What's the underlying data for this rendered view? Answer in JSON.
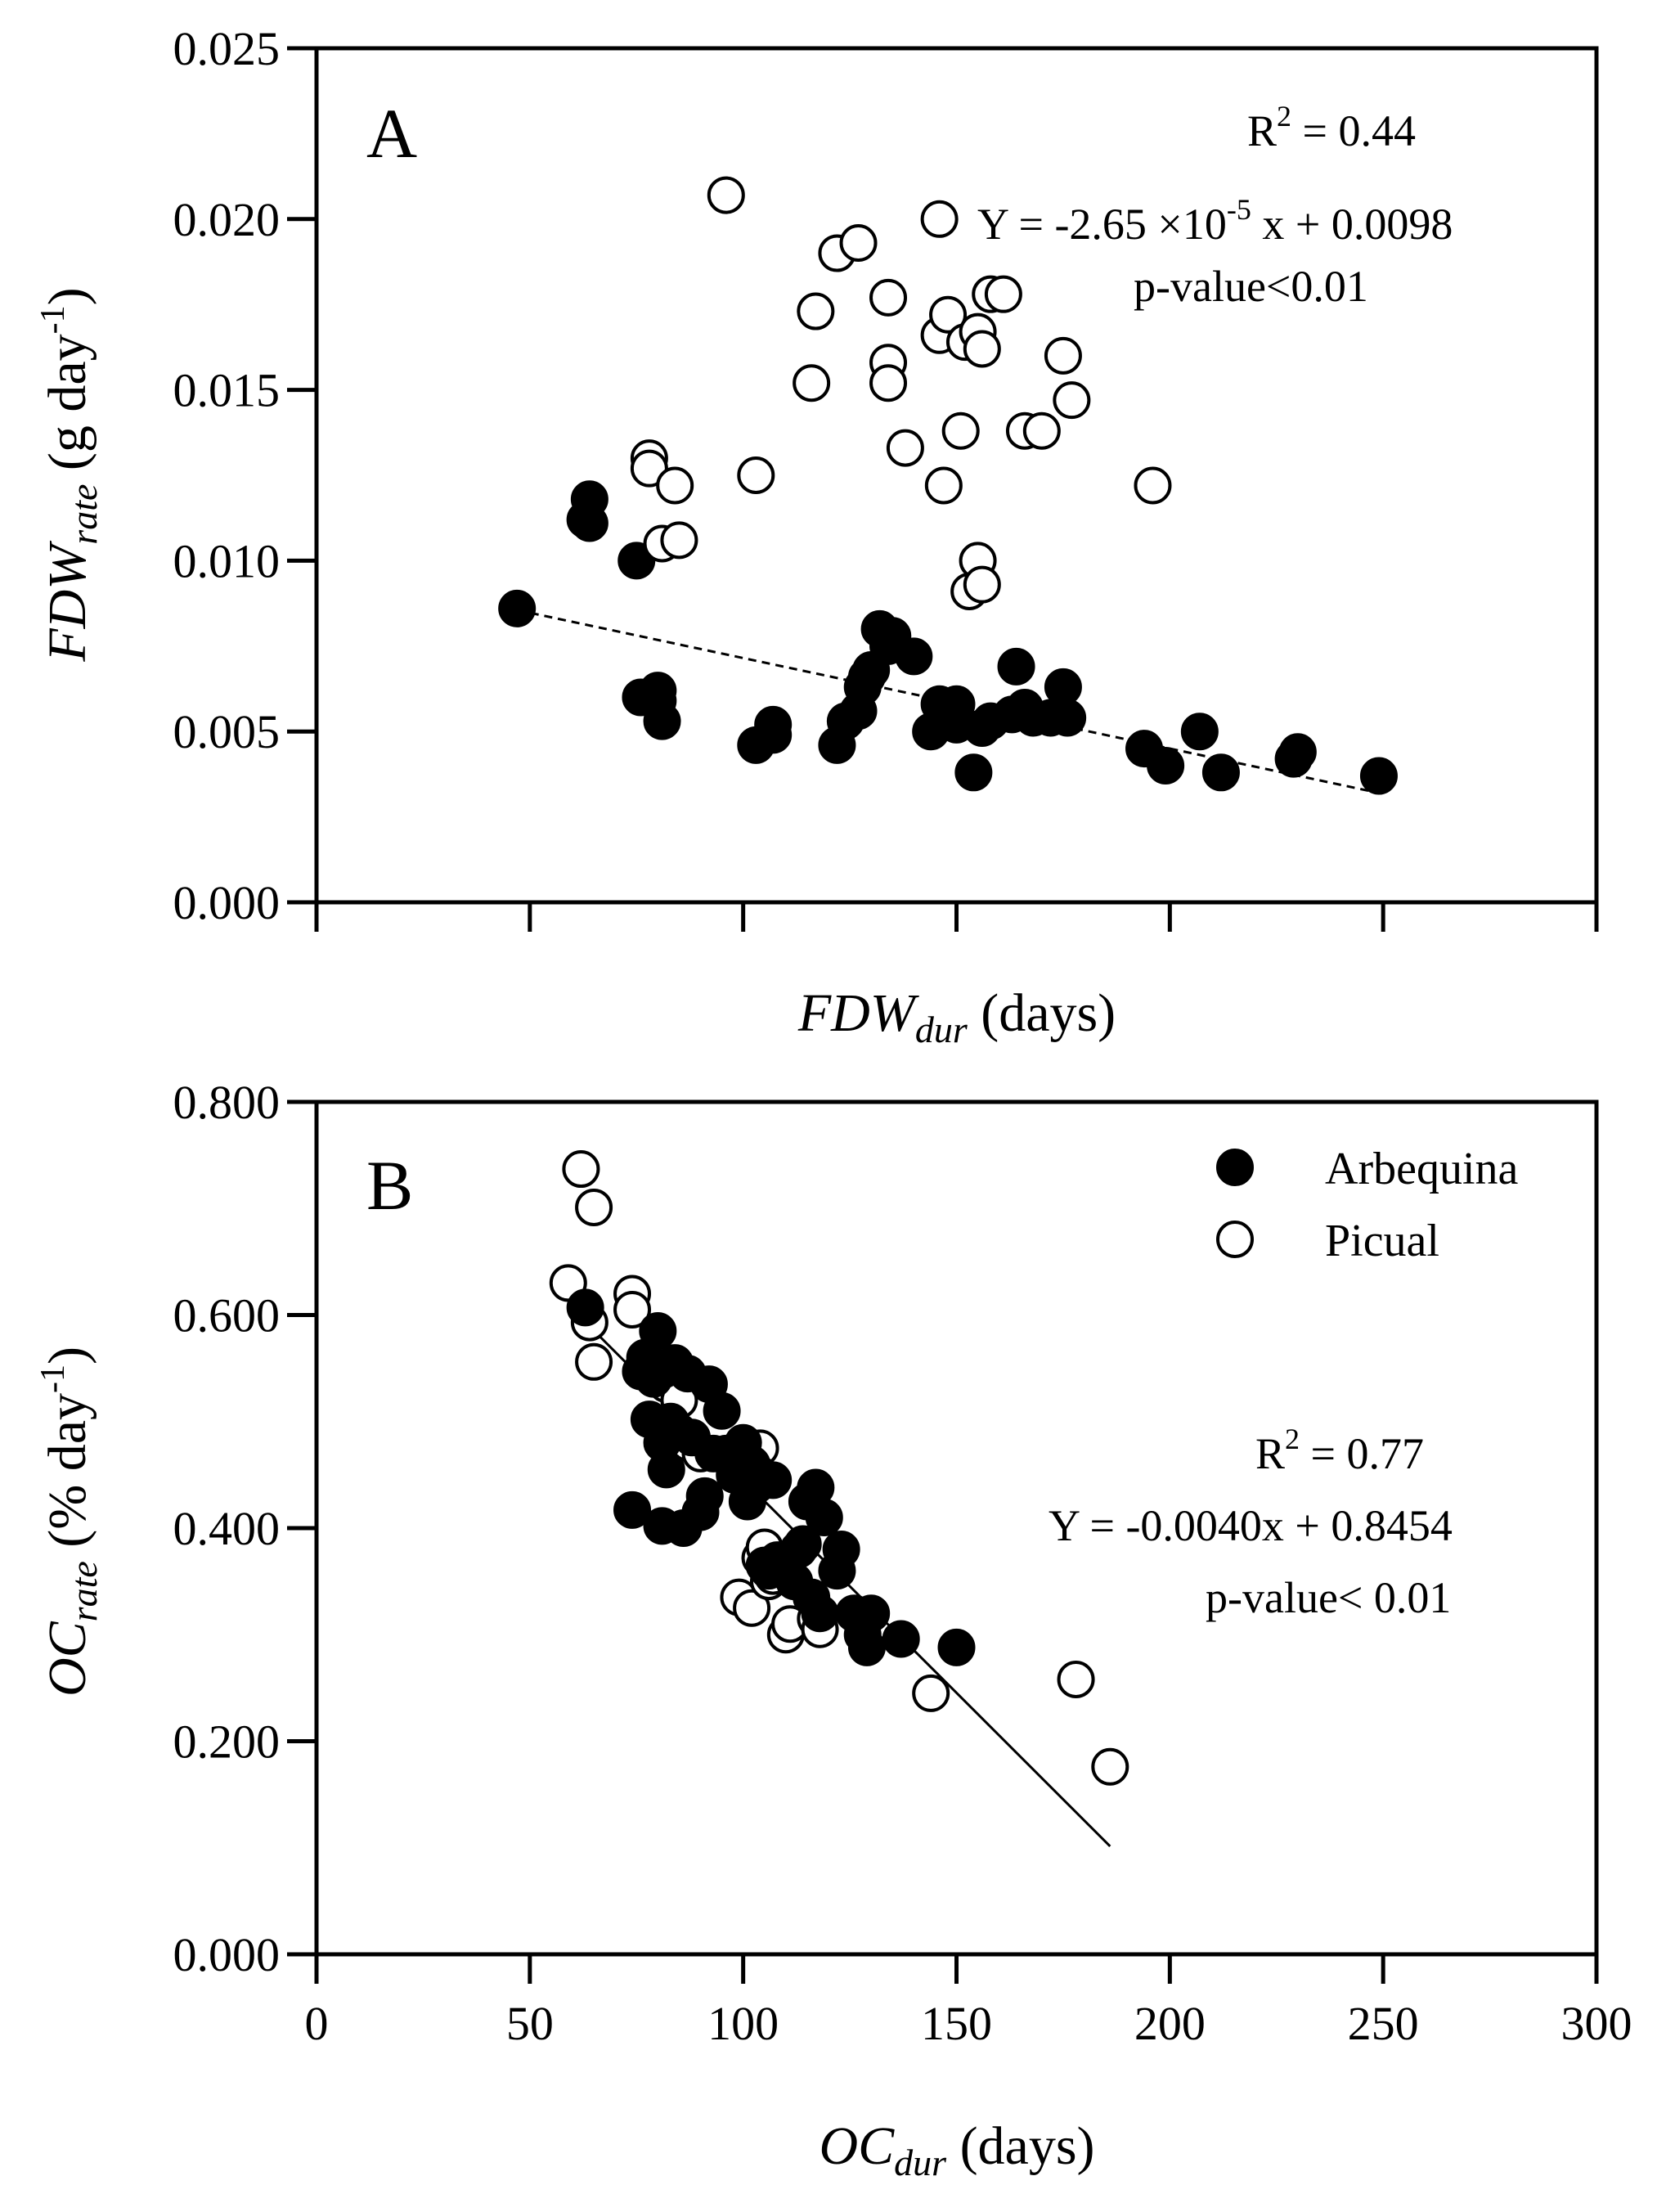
{
  "chart_data": [
    {
      "panel": "A",
      "type": "scatter",
      "panel_label": "A",
      "xlabel_main": "FDW",
      "xlabel_sub": "dur",
      "xlabel_units": " (days)",
      "ylabel_main": "FDW",
      "ylabel_sub": "rate",
      "ylabel_units": " (g day",
      "ylabel_sup": "-1",
      "ylabel_close": ")",
      "xlim": [
        0,
        300
      ],
      "ylim": [
        0,
        0.025
      ],
      "xticks": [
        0,
        50,
        100,
        150,
        200,
        250,
        300
      ],
      "yticks": [
        0.0,
        0.005,
        0.01,
        0.015,
        0.02,
        0.025
      ],
      "ytick_labels": [
        "0.000",
        "0.005",
        "0.010",
        "0.015",
        "0.020",
        "0.025"
      ],
      "annotations": {
        "r2_prefix": "R",
        "r2_sup": "2",
        "r2_value": " = 0.44",
        "eq_prefix": "Y = -2.65 ×10",
        "eq_sup": "-5",
        "eq_suffix": " x + 0.0098",
        "pvalue": "p-value<0.01"
      },
      "fit": {
        "style": "dashed",
        "slope": -2.65e-05,
        "intercept": 0.0098,
        "x_range": [
          47,
          250
        ],
        "applies_to": "Arbequina"
      },
      "series": [
        {
          "name": "Arbequina",
          "marker": "filled",
          "points": [
            [
              47,
              0.0086
            ],
            [
              63,
              0.0112
            ],
            [
              64,
              0.0118
            ],
            [
              64,
              0.0111
            ],
            [
              75,
              0.01
            ],
            [
              76,
              0.006
            ],
            [
              80,
              0.0062
            ],
            [
              80,
              0.0059
            ],
            [
              81,
              0.0053
            ],
            [
              103,
              0.0046
            ],
            [
              107,
              0.0049
            ],
            [
              107,
              0.0052
            ],
            [
              122,
              0.0046
            ],
            [
              124,
              0.0053
            ],
            [
              127,
              0.0056
            ],
            [
              128,
              0.0063
            ],
            [
              129,
              0.0066
            ],
            [
              130,
              0.0068
            ],
            [
              132,
              0.008
            ],
            [
              134,
              0.0075
            ],
            [
              135,
              0.0078
            ],
            [
              140,
              0.0072
            ],
            [
              144,
              0.005
            ],
            [
              146,
              0.0058
            ],
            [
              148,
              0.0053
            ],
            [
              150,
              0.0058
            ],
            [
              150,
              0.0052
            ],
            [
              154,
              0.0038
            ],
            [
              156,
              0.0051
            ],
            [
              158,
              0.0053
            ],
            [
              163,
              0.0055
            ],
            [
              164,
              0.0069
            ],
            [
              166,
              0.0057
            ],
            [
              168,
              0.0054
            ],
            [
              172,
              0.0054
            ],
            [
              175,
              0.0063
            ],
            [
              176,
              0.0054
            ],
            [
              194,
              0.0045
            ],
            [
              199,
              0.004
            ],
            [
              207,
              0.005
            ],
            [
              212,
              0.0038
            ],
            [
              229,
              0.0042
            ],
            [
              230,
              0.0044
            ],
            [
              249,
              0.0037
            ]
          ]
        },
        {
          "name": "Picual",
          "marker": "open",
          "points": [
            [
              78,
              0.013
            ],
            [
              78,
              0.0127
            ],
            [
              81,
              0.0105
            ],
            [
              84,
              0.0122
            ],
            [
              85,
              0.0106
            ],
            [
              96,
              0.0207
            ],
            [
              103,
              0.0125
            ],
            [
              116,
              0.0152
            ],
            [
              117,
              0.0173
            ],
            [
              122,
              0.019
            ],
            [
              127,
              0.0193
            ],
            [
              134,
              0.0177
            ],
            [
              134,
              0.0158
            ],
            [
              134,
              0.0152
            ],
            [
              138,
              0.0133
            ],
            [
              146,
              0.02
            ],
            [
              146,
              0.0166
            ],
            [
              147,
              0.0122
            ],
            [
              148,
              0.0172
            ],
            [
              151,
              0.0138
            ],
            [
              152,
              0.0164
            ],
            [
              153,
              0.0091
            ],
            [
              155,
              0.0167
            ],
            [
              155,
              0.01
            ],
            [
              156,
              0.0162
            ],
            [
              156,
              0.0093
            ],
            [
              158,
              0.0178
            ],
            [
              161,
              0.0178
            ],
            [
              166,
              0.0138
            ],
            [
              170,
              0.0138
            ],
            [
              175,
              0.016
            ],
            [
              177,
              0.0147
            ],
            [
              196,
              0.0122
            ]
          ]
        }
      ]
    },
    {
      "panel": "B",
      "type": "scatter",
      "panel_label": "B",
      "xlabel_main": "OC",
      "xlabel_sub": "dur",
      "xlabel_units": " (days)",
      "ylabel_main": "OC",
      "ylabel_sub": "rate",
      "ylabel_units": " (% day",
      "ylabel_sup": "-1",
      "ylabel_close": ")",
      "xlim": [
        0,
        300
      ],
      "ylim": [
        0,
        0.8
      ],
      "xticks": [
        0,
        50,
        100,
        150,
        200,
        250,
        300
      ],
      "xtick_labels": [
        "0",
        "50",
        "100",
        "150",
        "200",
        "250",
        "300"
      ],
      "yticks": [
        0.0,
        0.2,
        0.4,
        0.6,
        0.8
      ],
      "ytick_labels": [
        "0.000",
        "0.200",
        "0.400",
        "0.600",
        "0.800"
      ],
      "legend": {
        "position": "top-right",
        "entries": [
          {
            "label": "Arbequina",
            "marker": "filled"
          },
          {
            "label": "Picual",
            "marker": "open"
          }
        ]
      },
      "annotations": {
        "r2_prefix": "R",
        "r2_sup": "2",
        "r2_value": " = 0.77",
        "equation": "Y = -0.0040x + 0.8454",
        "pvalue": "p-value< 0.01"
      },
      "fit": {
        "style": "solid",
        "slope": -0.004,
        "intercept": 0.8454,
        "x_range": [
          60,
          186
        ],
        "applies_to": "all"
      },
      "series": [
        {
          "name": "Picual",
          "marker": "open",
          "points": [
            [
              59,
              0.63
            ],
            [
              62,
              0.737
            ],
            [
              64,
              0.593
            ],
            [
              65,
              0.701
            ],
            [
              65,
              0.556
            ],
            [
              74,
              0.62
            ],
            [
              74,
              0.605
            ],
            [
              81,
              0.545
            ],
            [
              82,
              0.535
            ],
            [
              85,
              0.52
            ],
            [
              87,
              0.48
            ],
            [
              90,
              0.47
            ],
            [
              104,
              0.475
            ],
            [
              99,
              0.335
            ],
            [
              102,
              0.325
            ],
            [
              104,
              0.372
            ],
            [
              105,
              0.382
            ],
            [
              106,
              0.35
            ],
            [
              107,
              0.355
            ],
            [
              110,
              0.3
            ],
            [
              111,
              0.31
            ],
            [
              117,
              0.315
            ],
            [
              118,
              0.305
            ],
            [
              144,
              0.245
            ],
            [
              178,
              0.258
            ],
            [
              186,
              0.176
            ]
          ]
        },
        {
          "name": "Arbequina",
          "marker": "filled",
          "points": [
            [
              63,
              0.607
            ],
            [
              74,
              0.417
            ],
            [
              76,
              0.547
            ],
            [
              77,
              0.56
            ],
            [
              78,
              0.502
            ],
            [
              79,
              0.54
            ],
            [
              80,
              0.585
            ],
            [
              81,
              0.48
            ],
            [
              81,
              0.402
            ],
            [
              82,
              0.455
            ],
            [
              83,
              0.5
            ],
            [
              84,
              0.555
            ],
            [
              85,
              0.49
            ],
            [
              86,
              0.4
            ],
            [
              87,
              0.545
            ],
            [
              88,
              0.485
            ],
            [
              90,
              0.415
            ],
            [
              91,
              0.43
            ],
            [
              92,
              0.535
            ],
            [
              93,
              0.47
            ],
            [
              95,
              0.51
            ],
            [
              96,
              0.47
            ],
            [
              98,
              0.45
            ],
            [
              100,
              0.48
            ],
            [
              101,
              0.425
            ],
            [
              102,
              0.46
            ],
            [
              103,
              0.44
            ],
            [
              104,
              0.45
            ],
            [
              105,
              0.365
            ],
            [
              106,
              0.36
            ],
            [
              107,
              0.445
            ],
            [
              108,
              0.37
            ],
            [
              112,
              0.35
            ],
            [
              113,
              0.38
            ],
            [
              114,
              0.385
            ],
            [
              115,
              0.425
            ],
            [
              116,
              0.335
            ],
            [
              117,
              0.438
            ],
            [
              118,
              0.32
            ],
            [
              119,
              0.41
            ],
            [
              122,
              0.36
            ],
            [
              123,
              0.38
            ],
            [
              126,
              0.32
            ],
            [
              128,
              0.3
            ],
            [
              129,
              0.288
            ],
            [
              130,
              0.32
            ],
            [
              137,
              0.296
            ],
            [
              150,
              0.288
            ]
          ]
        }
      ]
    }
  ]
}
